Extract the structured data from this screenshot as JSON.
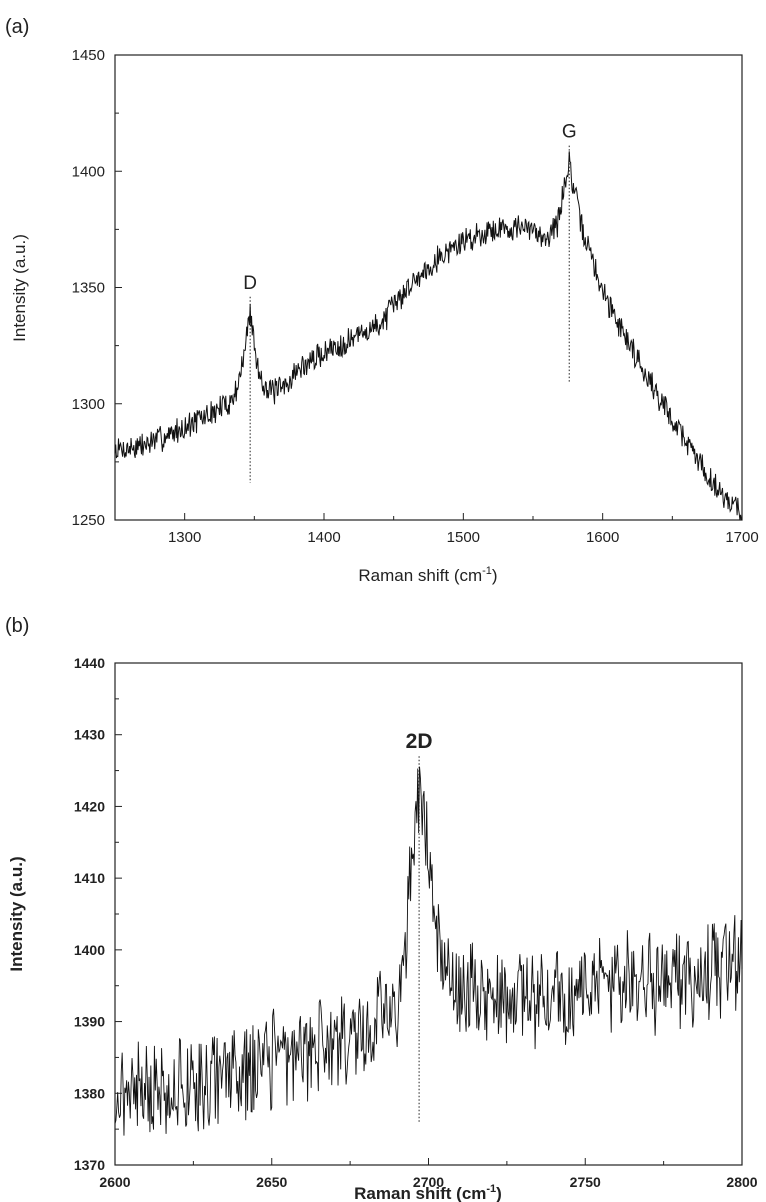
{
  "chart_data": [
    {
      "panel_label": "(a)",
      "type": "line",
      "xlabel": "Raman shift (cm",
      "xlabel_sup": "-1",
      "xlabel_end": ")",
      "ylabel": "Intensity (a.u.)",
      "xlim": [
        1250,
        1700
      ],
      "ylim": [
        1250,
        1450
      ],
      "xticks": [
        1300,
        1400,
        1500,
        1600,
        1700
      ],
      "yticks": [
        1250,
        1300,
        1350,
        1400,
        1450
      ],
      "grid": false,
      "line_color": "#111111",
      "noise_amplitude": 5,
      "series_profile": [
        [
          1250,
          1280
        ],
        [
          1270,
          1282
        ],
        [
          1290,
          1287
        ],
        [
          1300,
          1290
        ],
        [
          1320,
          1296
        ],
        [
          1335,
          1302
        ],
        [
          1342,
          1318
        ],
        [
          1347,
          1340
        ],
        [
          1352,
          1316
        ],
        [
          1360,
          1305
        ],
        [
          1370,
          1306
        ],
        [
          1380,
          1314
        ],
        [
          1400,
          1322
        ],
        [
          1420,
          1328
        ],
        [
          1440,
          1334
        ],
        [
          1460,
          1350
        ],
        [
          1480,
          1362
        ],
        [
          1500,
          1370
        ],
        [
          1520,
          1375
        ],
        [
          1540,
          1376
        ],
        [
          1560,
          1372
        ],
        [
          1568,
          1378
        ],
        [
          1572,
          1392
        ],
        [
          1576,
          1404
        ],
        [
          1580,
          1390
        ],
        [
          1585,
          1376
        ],
        [
          1600,
          1348
        ],
        [
          1620,
          1325
        ],
        [
          1640,
          1303
        ],
        [
          1660,
          1284
        ],
        [
          1680,
          1265
        ],
        [
          1700,
          1253
        ]
      ],
      "annotations": [
        {
          "text": "D",
          "x": 1347,
          "y_top": 1346,
          "y_bottom": 1266
        },
        {
          "text": "G",
          "x": 1576,
          "y_top": 1411,
          "y_bottom": 1309
        }
      ]
    },
    {
      "panel_label": "(b)",
      "type": "line",
      "xlabel": "Raman shift (cm",
      "xlabel_sup": "-1",
      "xlabel_end": ")",
      "ylabel": "Intensity (a.u.)",
      "xlim": [
        2600,
        2800
      ],
      "ylim": [
        1370,
        1440
      ],
      "xticks": [
        2600,
        2650,
        2700,
        2750,
        2800
      ],
      "yticks": [
        1370,
        1380,
        1390,
        1400,
        1410,
        1420,
        1430,
        1440
      ],
      "grid": false,
      "line_color": "#111111",
      "noise_amplitude": 6,
      "series_profile": [
        [
          2600,
          1380
        ],
        [
          2620,
          1381
        ],
        [
          2640,
          1383
        ],
        [
          2660,
          1386
        ],
        [
          2680,
          1389
        ],
        [
          2690,
          1393
        ],
        [
          2693,
          1402
        ],
        [
          2696,
          1418
        ],
        [
          2698,
          1420
        ],
        [
          2700,
          1414
        ],
        [
          2702,
          1404
        ],
        [
          2705,
          1396
        ],
        [
          2720,
          1393
        ],
        [
          2740,
          1394
        ],
        [
          2760,
          1395
        ],
        [
          2780,
          1396
        ],
        [
          2800,
          1398
        ]
      ],
      "annotations": [
        {
          "text": "2D",
          "x": 2697,
          "y_top": 1427,
          "y_bottom": 1376
        }
      ]
    }
  ]
}
